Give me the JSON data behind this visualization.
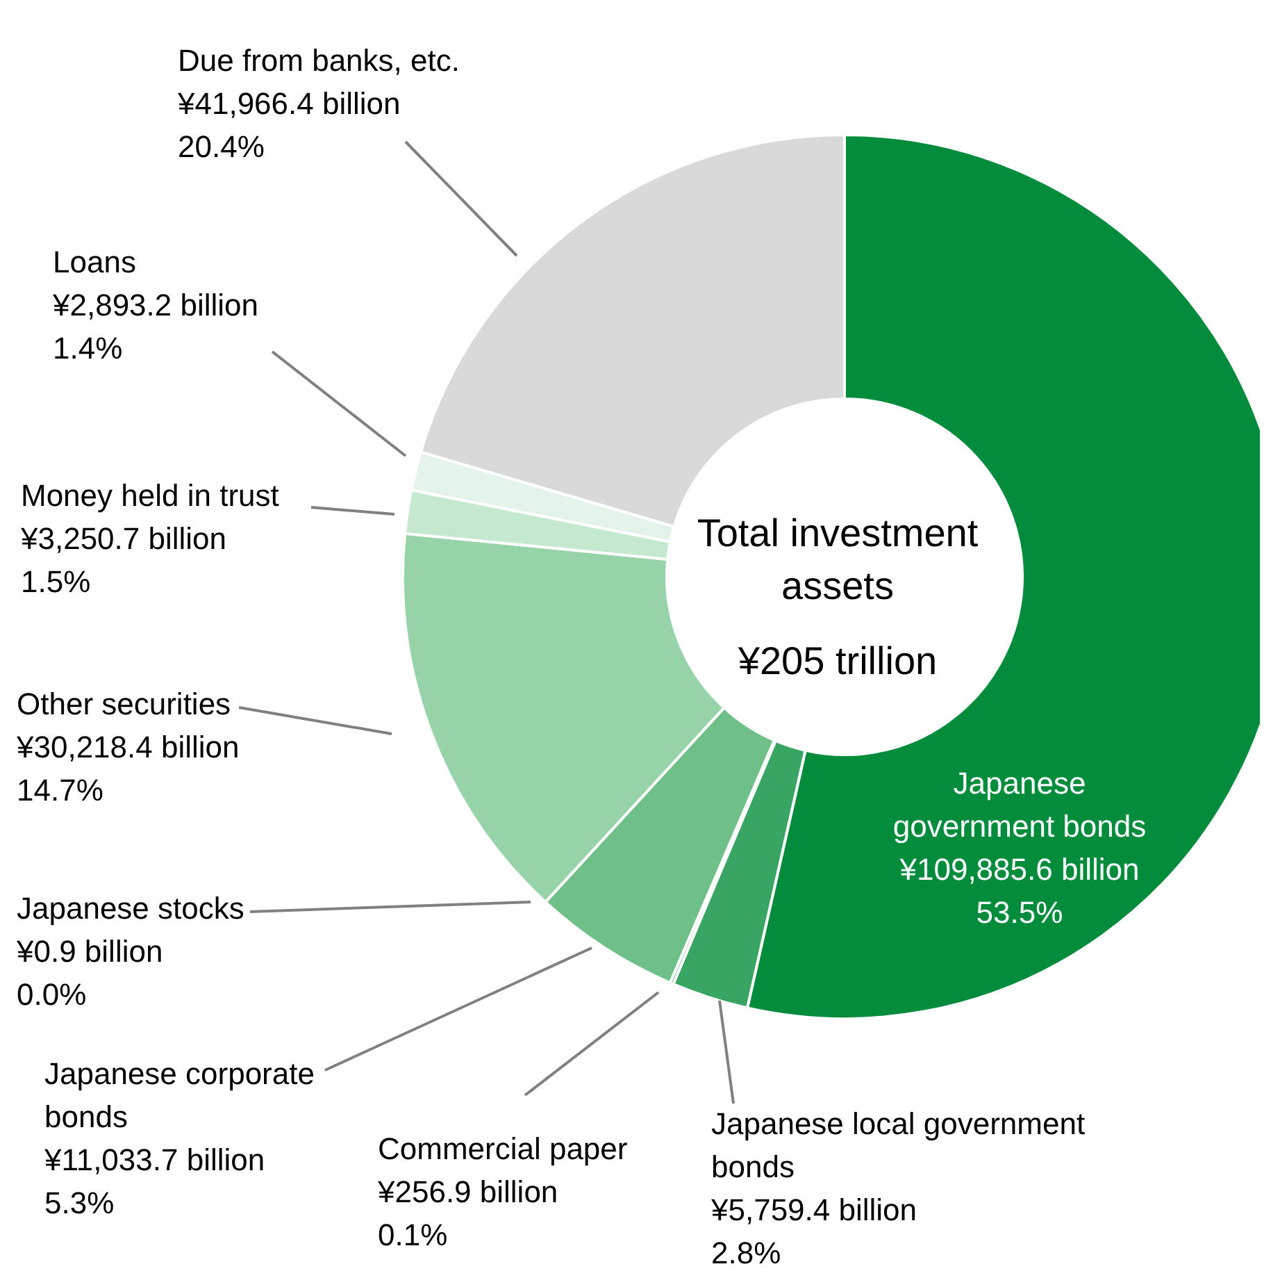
{
  "chart_data": {
    "type": "donut",
    "categories": [
      "Japanese government bonds",
      "Japanese local government bonds",
      "Commercial paper",
      "Japanese corporate bonds",
      "Japanese stocks",
      "Other securities",
      "Money held in trust",
      "Loans",
      "Due from banks, etc."
    ],
    "values": [
      109885.6,
      5759.4,
      256.9,
      11033.7,
      0.9,
      30218.4,
      3250.7,
      2893.2,
      41966.4
    ],
    "value_labels": [
      "¥109,885.6 billion",
      "¥5,759.4 billion",
      "¥256.9 billion",
      "¥11,033.7 billion",
      "¥0.9 billion",
      "¥30,218.4 billion",
      "¥3,250.7 billion",
      "¥2,893.2 billion",
      "¥41,966.4 billion"
    ],
    "colors": [
      "#038c3c",
      "#38a562",
      "#5cb878",
      "#6fc088",
      "#7fc795",
      "#97d3a9",
      "#c5e8d0",
      "#e5f4ea",
      "#d9d9d9"
    ],
    "annotations": [
      "Total investment assets",
      "¥205 trillion",
      {
        "text": "53.5%",
        "x": "Japanese government bonds"
      },
      {
        "text": "2.8%",
        "x": "Japanese local government bonds"
      },
      {
        "text": "0.1%",
        "x": "Commercial paper"
      },
      {
        "text": "5.3%",
        "x": "Japanese corporate bonds"
      },
      {
        "text": "0.0%",
        "x": "Japanese stocks"
      },
      {
        "text": "14.7%",
        "x": "Other securities"
      },
      {
        "text": "1.5%",
        "x": "Money held in trust"
      },
      {
        "text": "1.4%",
        "x": "Loans"
      },
      {
        "text": "20.4%",
        "x": "Due from banks, etc."
      }
    ]
  }
}
